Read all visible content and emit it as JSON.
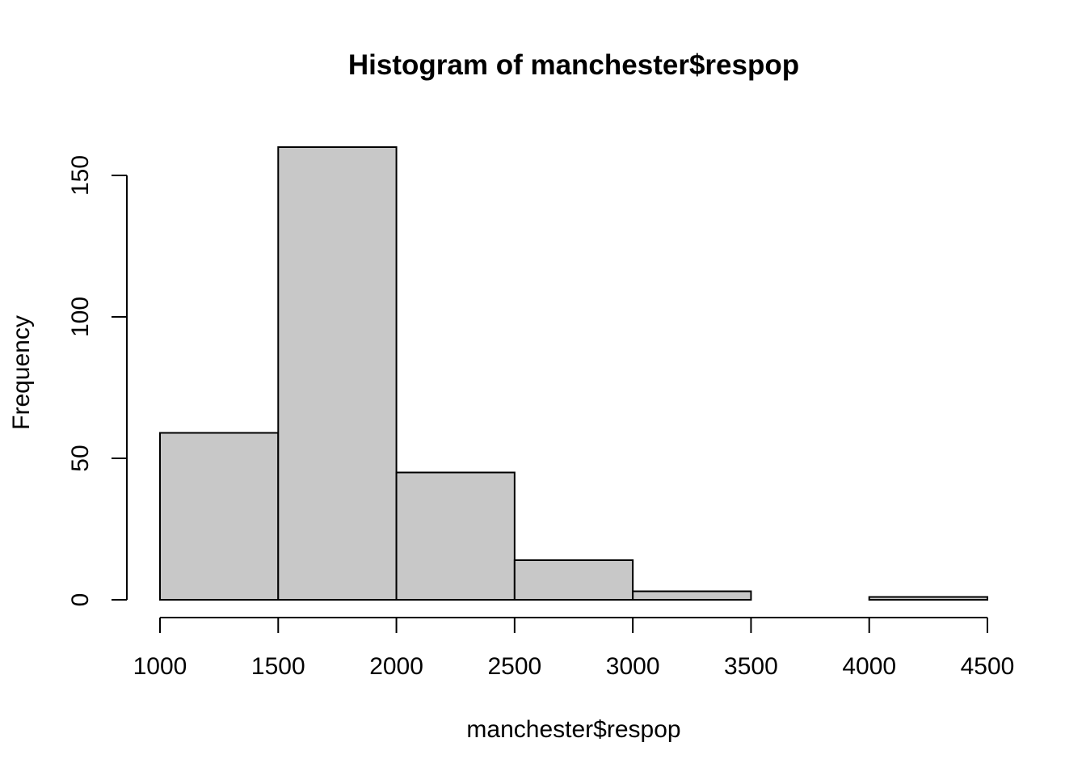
{
  "chart_data": {
    "type": "bar",
    "title": "Histogram of manchester$respop",
    "xlabel": "manchester$respop",
    "ylabel": "Frequency",
    "bins": [
      {
        "start": 1000,
        "end": 1500,
        "count": 59
      },
      {
        "start": 1500,
        "end": 2000,
        "count": 160
      },
      {
        "start": 2000,
        "end": 2500,
        "count": 45
      },
      {
        "start": 2500,
        "end": 3000,
        "count": 14
      },
      {
        "start": 3000,
        "end": 3500,
        "count": 3
      },
      {
        "start": 3500,
        "end": 4000,
        "count": 0
      },
      {
        "start": 4000,
        "end": 4500,
        "count": 1
      }
    ],
    "xlim": [
      1000,
      4500
    ],
    "ylim": [
      0,
      160
    ],
    "x_ticks": [
      "1000",
      "1500",
      "2000",
      "2500",
      "3000",
      "3500",
      "4000",
      "4500"
    ],
    "y_ticks": [
      "0",
      "50",
      "100",
      "150"
    ],
    "bar_color": "#c8c8c8",
    "grid": false,
    "legend": "none"
  }
}
